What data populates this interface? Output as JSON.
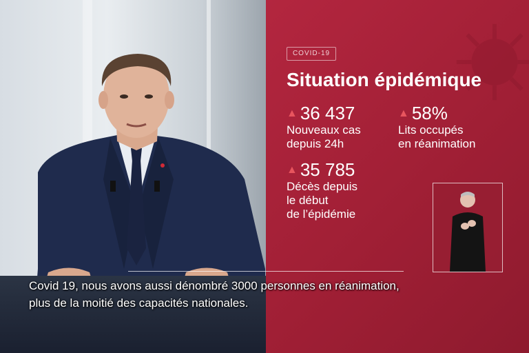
{
  "overlay": {
    "tag": "COVID-19",
    "title": "Situation épidémique",
    "stats": [
      {
        "value": "36 437",
        "label_line1": "Nouveaux cas",
        "label_line2": "depuis 24h",
        "label_line3": ""
      },
      {
        "value": "58%",
        "label_line1": "Lits occupés",
        "label_line2": "en réanimation",
        "label_line3": ""
      },
      {
        "value": "35 785",
        "label_line1": "Décès depuis",
        "label_line2": "le début",
        "label_line3": "de l’épidémie"
      }
    ],
    "arrow_glyph": "▲",
    "colors": {
      "panel": "#a8213a",
      "arrow": "#e8555e",
      "text": "#ffffff"
    }
  },
  "subtitles": {
    "line1": "Covid 19, nous avons aussi dénombré 3000 personnes en réanimation,",
    "line2": "plus de la moitié des capacités nationales."
  },
  "icons": {
    "virus": "coronavirus-icon",
    "sign_language": "sign-language-interpreter"
  }
}
